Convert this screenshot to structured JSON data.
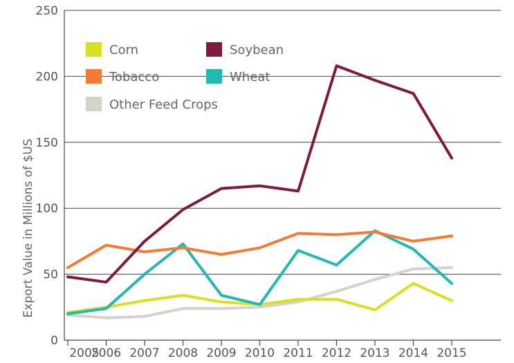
{
  "chart_data": {
    "type": "line",
    "title": "",
    "xlabel": "",
    "ylabel": "Export Value in Millions of $US",
    "x": [
      "2005",
      "2006",
      "2007",
      "2008",
      "2009",
      "2010",
      "2011",
      "2012",
      "2013",
      "2014",
      "2015"
    ],
    "ylim": [
      0,
      250
    ],
    "yticks": [
      "0",
      "50",
      "100",
      "150",
      "200",
      "250"
    ],
    "grid": true,
    "legend_position": "top-left",
    "series": [
      {
        "name": "Corn",
        "color": "#d9e021",
        "values": [
          21,
          25,
          30,
          34,
          29,
          27,
          31,
          31,
          23,
          43,
          30
        ]
      },
      {
        "name": "Soybean",
        "color": "#7f1a3f",
        "values": [
          48,
          44,
          75,
          99,
          115,
          117,
          113,
          208,
          197,
          187,
          138
        ]
      },
      {
        "name": "Tobacco",
        "color": "#f47b33",
        "values": [
          55,
          72,
          67,
          70,
          65,
          70,
          81,
          80,
          82,
          75,
          79
        ]
      },
      {
        "name": "Wheat",
        "color": "#23b9b2",
        "values": [
          20,
          24,
          50,
          73,
          34,
          27,
          68,
          57,
          83,
          69,
          43
        ]
      },
      {
        "name": "Other Feed Crops",
        "color": "#d6d2cb",
        "values": [
          19,
          17,
          18,
          24,
          24,
          25,
          29,
          37,
          46,
          54,
          55
        ]
      }
    ]
  }
}
